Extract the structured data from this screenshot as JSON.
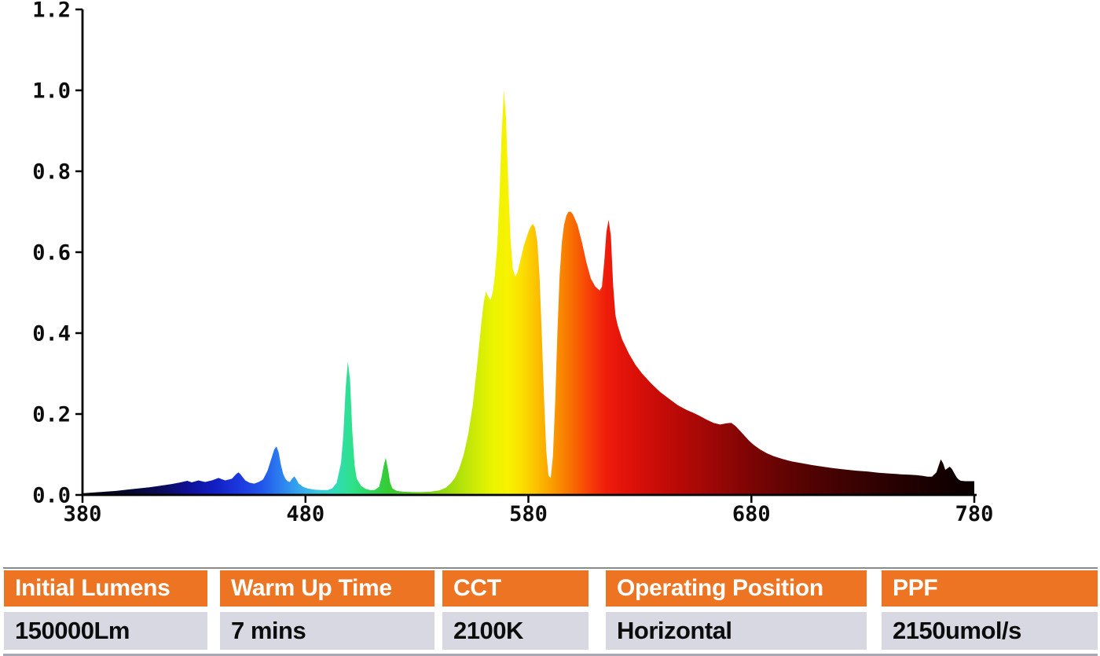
{
  "page": {
    "background": "#ffffff"
  },
  "chart_data": {
    "type": "area",
    "title": "",
    "xlabel": "",
    "ylabel": "",
    "xlim": [
      380,
      780
    ],
    "ylim": [
      0,
      1.2
    ],
    "x_ticks": [
      380,
      480,
      580,
      680,
      780
    ],
    "y_ticks": [
      0.0,
      0.2,
      0.4,
      0.6,
      0.8,
      1.0,
      1.2
    ],
    "grid": false,
    "legend": false,
    "series": [
      {
        "name": "relative-spectral-power",
        "points": [
          [
            380,
            0.004
          ],
          [
            385,
            0.006
          ],
          [
            390,
            0.008
          ],
          [
            395,
            0.01
          ],
          [
            400,
            0.013
          ],
          [
            405,
            0.016
          ],
          [
            410,
            0.019
          ],
          [
            415,
            0.023
          ],
          [
            420,
            0.027
          ],
          [
            424,
            0.031
          ],
          [
            427,
            0.035
          ],
          [
            429,
            0.031
          ],
          [
            432,
            0.036
          ],
          [
            435,
            0.032
          ],
          [
            438,
            0.036
          ],
          [
            441,
            0.042
          ],
          [
            444,
            0.036
          ],
          [
            447,
            0.04
          ],
          [
            449,
            0.052
          ],
          [
            450,
            0.056
          ],
          [
            451,
            0.05
          ],
          [
            453,
            0.036
          ],
          [
            455,
            0.03
          ],
          [
            457,
            0.028
          ],
          [
            459,
            0.032
          ],
          [
            461,
            0.038
          ],
          [
            463,
            0.06
          ],
          [
            465,
            0.095
          ],
          [
            466,
            0.112
          ],
          [
            467,
            0.12
          ],
          [
            468,
            0.105
          ],
          [
            469,
            0.075
          ],
          [
            470,
            0.052
          ],
          [
            471,
            0.04
          ],
          [
            472,
            0.034
          ],
          [
            473,
            0.032
          ],
          [
            474,
            0.04
          ],
          [
            475,
            0.046
          ],
          [
            476,
            0.038
          ],
          [
            477,
            0.028
          ],
          [
            479,
            0.02
          ],
          [
            481,
            0.016
          ],
          [
            484,
            0.013
          ],
          [
            487,
            0.012
          ],
          [
            490,
            0.012
          ],
          [
            492,
            0.016
          ],
          [
            494,
            0.03
          ],
          [
            496,
            0.08
          ],
          [
            497,
            0.15
          ],
          [
            498,
            0.26
          ],
          [
            499,
            0.33
          ],
          [
            500,
            0.285
          ],
          [
            501,
            0.16
          ],
          [
            502,
            0.075
          ],
          [
            503,
            0.04
          ],
          [
            505,
            0.022
          ],
          [
            507,
            0.015
          ],
          [
            509,
            0.012
          ],
          [
            511,
            0.012
          ],
          [
            513,
            0.02
          ],
          [
            514,
            0.04
          ],
          [
            515,
            0.07
          ],
          [
            516,
            0.092
          ],
          [
            517,
            0.065
          ],
          [
            518,
            0.03
          ],
          [
            519,
            0.016
          ],
          [
            521,
            0.01
          ],
          [
            524,
            0.008
          ],
          [
            528,
            0.007
          ],
          [
            532,
            0.007
          ],
          [
            536,
            0.008
          ],
          [
            540,
            0.011
          ],
          [
            543,
            0.018
          ],
          [
            545,
            0.028
          ],
          [
            547,
            0.042
          ],
          [
            549,
            0.065
          ],
          [
            551,
            0.1
          ],
          [
            553,
            0.15
          ],
          [
            555,
            0.22
          ],
          [
            557,
            0.32
          ],
          [
            559,
            0.43
          ],
          [
            560,
            0.478
          ],
          [
            561,
            0.503
          ],
          [
            562,
            0.49
          ],
          [
            563,
            0.482
          ],
          [
            564,
            0.5
          ],
          [
            565,
            0.545
          ],
          [
            566,
            0.615
          ],
          [
            567,
            0.735
          ],
          [
            568,
            0.89
          ],
          [
            569,
            1.0
          ],
          [
            570,
            0.93
          ],
          [
            571,
            0.76
          ],
          [
            572,
            0.63
          ],
          [
            573,
            0.56
          ],
          [
            574,
            0.54
          ],
          [
            575,
            0.548
          ],
          [
            576,
            0.57
          ],
          [
            578,
            0.617
          ],
          [
            580,
            0.65
          ],
          [
            581,
            0.663
          ],
          [
            582,
            0.67
          ],
          [
            583,
            0.66
          ],
          [
            584,
            0.625
          ],
          [
            585,
            0.54
          ],
          [
            586,
            0.4
          ],
          [
            587,
            0.24
          ],
          [
            588,
            0.11
          ],
          [
            589,
            0.048
          ],
          [
            590,
            0.042
          ],
          [
            591,
            0.095
          ],
          [
            592,
            0.23
          ],
          [
            593,
            0.4
          ],
          [
            594,
            0.54
          ],
          [
            595,
            0.625
          ],
          [
            596,
            0.668
          ],
          [
            597,
            0.69
          ],
          [
            598,
            0.7
          ],
          [
            599,
            0.7
          ],
          [
            600,
            0.693
          ],
          [
            602,
            0.668
          ],
          [
            604,
            0.625
          ],
          [
            606,
            0.575
          ],
          [
            608,
            0.535
          ],
          [
            610,
            0.515
          ],
          [
            612,
            0.505
          ],
          [
            613,
            0.515
          ],
          [
            614,
            0.575
          ],
          [
            615,
            0.65
          ],
          [
            616,
            0.68
          ],
          [
            617,
            0.64
          ],
          [
            618,
            0.52
          ],
          [
            619,
            0.445
          ],
          [
            620,
            0.42
          ],
          [
            622,
            0.385
          ],
          [
            625,
            0.35
          ],
          [
            628,
            0.322
          ],
          [
            631,
            0.3
          ],
          [
            635,
            0.276
          ],
          [
            639,
            0.255
          ],
          [
            643,
            0.238
          ],
          [
            647,
            0.222
          ],
          [
            651,
            0.21
          ],
          [
            654,
            0.203
          ],
          [
            657,
            0.195
          ],
          [
            660,
            0.186
          ],
          [
            663,
            0.178
          ],
          [
            666,
            0.174
          ],
          [
            669,
            0.177
          ],
          [
            671,
            0.178
          ],
          [
            673,
            0.17
          ],
          [
            675,
            0.158
          ],
          [
            677,
            0.146
          ],
          [
            679,
            0.134
          ],
          [
            681,
            0.124
          ],
          [
            684,
            0.112
          ],
          [
            687,
            0.103
          ],
          [
            690,
            0.096
          ],
          [
            694,
            0.089
          ],
          [
            698,
            0.083
          ],
          [
            702,
            0.079
          ],
          [
            707,
            0.074
          ],
          [
            712,
            0.07
          ],
          [
            717,
            0.066
          ],
          [
            722,
            0.063
          ],
          [
            727,
            0.06
          ],
          [
            732,
            0.058
          ],
          [
            737,
            0.055
          ],
          [
            742,
            0.053
          ],
          [
            747,
            0.051
          ],
          [
            751,
            0.05
          ],
          [
            754,
            0.049
          ],
          [
            757,
            0.047
          ],
          [
            759,
            0.045
          ],
          [
            761,
            0.045
          ],
          [
            763,
            0.056
          ],
          [
            764,
            0.072
          ],
          [
            765,
            0.088
          ],
          [
            766,
            0.078
          ],
          [
            767,
            0.062
          ],
          [
            768,
            0.066
          ],
          [
            769,
            0.07
          ],
          [
            770,
            0.064
          ],
          [
            771,
            0.054
          ],
          [
            772,
            0.044
          ],
          [
            773,
            0.038
          ],
          [
            774,
            0.035
          ],
          [
            776,
            0.034
          ],
          [
            778,
            0.034
          ],
          [
            780,
            0.034
          ]
        ]
      }
    ],
    "gradient_stops": [
      [
        380,
        "#03030e"
      ],
      [
        400,
        "#06062e"
      ],
      [
        415,
        "#0b0b58"
      ],
      [
        428,
        "#10109b"
      ],
      [
        440,
        "#1320c4"
      ],
      [
        450,
        "#1b38dd"
      ],
      [
        460,
        "#2153ea"
      ],
      [
        468,
        "#2b7bef"
      ],
      [
        477,
        "#36a6ec"
      ],
      [
        486,
        "#38c8dd"
      ],
      [
        494,
        "#30dcb2"
      ],
      [
        501,
        "#2ee18b"
      ],
      [
        509,
        "#2ed75c"
      ],
      [
        517,
        "#35cb35"
      ],
      [
        527,
        "#55cb20"
      ],
      [
        537,
        "#7ed215"
      ],
      [
        547,
        "#a7de0c"
      ],
      [
        556,
        "#cdeb06"
      ],
      [
        564,
        "#ebf400"
      ],
      [
        571,
        "#f8f200"
      ],
      [
        577,
        "#fbdf00"
      ],
      [
        583,
        "#fcc400"
      ],
      [
        589,
        "#faa600"
      ],
      [
        594,
        "#f98b00"
      ],
      [
        599,
        "#f87000"
      ],
      [
        604,
        "#f85304"
      ],
      [
        609,
        "#f53708"
      ],
      [
        615,
        "#ef1d0b"
      ],
      [
        622,
        "#e4140a"
      ],
      [
        632,
        "#d30e08"
      ],
      [
        643,
        "#c00a07"
      ],
      [
        655,
        "#aa0806"
      ],
      [
        668,
        "#920605"
      ],
      [
        682,
        "#780404"
      ],
      [
        697,
        "#600303"
      ],
      [
        712,
        "#4b0202"
      ],
      [
        727,
        "#3a0202"
      ],
      [
        742,
        "#2a0101"
      ],
      [
        756,
        "#1d0101"
      ],
      [
        766,
        "#140000"
      ],
      [
        774,
        "#0d0000"
      ],
      [
        780,
        "#090000"
      ]
    ]
  },
  "table": {
    "header_bg": "#ed7423",
    "header_text_color": "#ffffff",
    "value_bg": "#d8d8e3",
    "value_text_color": "#0c0c0c",
    "columns": [
      {
        "header": "Initial Lumens",
        "value": "150000Lm"
      },
      {
        "header": "Warm Up Time",
        "value": "7 mins"
      },
      {
        "header": "CCT",
        "value": "2100K"
      },
      {
        "header": "Operating Position",
        "value": "Horizontal"
      },
      {
        "header": "PPF",
        "value": "2150umol/s"
      }
    ]
  }
}
